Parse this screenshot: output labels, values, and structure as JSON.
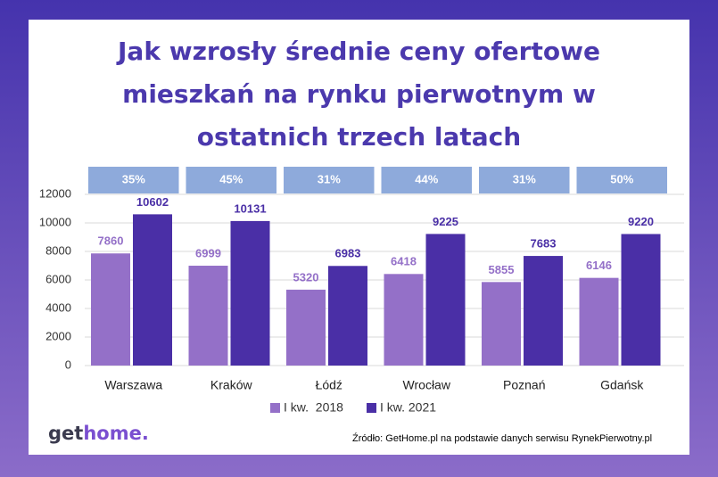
{
  "chart_data": {
    "type": "bar",
    "title": "Jak wzrosły średnie ceny ofertowe mieszkań na rynku pierwotnym w ostatnich trzech latach",
    "categories": [
      "Warszawa",
      "Kraków",
      "Łódź",
      "Wrocław",
      "Poznań",
      "Gdańsk"
    ],
    "series": [
      {
        "name": "I kw.  2018",
        "color": "#9470c8",
        "values": [
          7860,
          6999,
          5320,
          6418,
          5855,
          6146
        ]
      },
      {
        "name": "I kw. 2021",
        "color": "#4a2fa6",
        "values": [
          10602,
          10131,
          6983,
          9225,
          7683,
          9220
        ]
      }
    ],
    "annotations": [
      "35%",
      "45%",
      "31%",
      "44%",
      "31%",
      "50%"
    ],
    "annotation_color": "#8eaadb",
    "ylim": [
      0,
      12000
    ],
    "yticks": [
      0,
      2000,
      4000,
      6000,
      8000,
      10000,
      12000
    ],
    "grid": true
  },
  "logo": [
    "get",
    "home."
  ],
  "source": "Źródło: GetHome.pl na podstawie danych serwisu RynekPierwotny.pl"
}
